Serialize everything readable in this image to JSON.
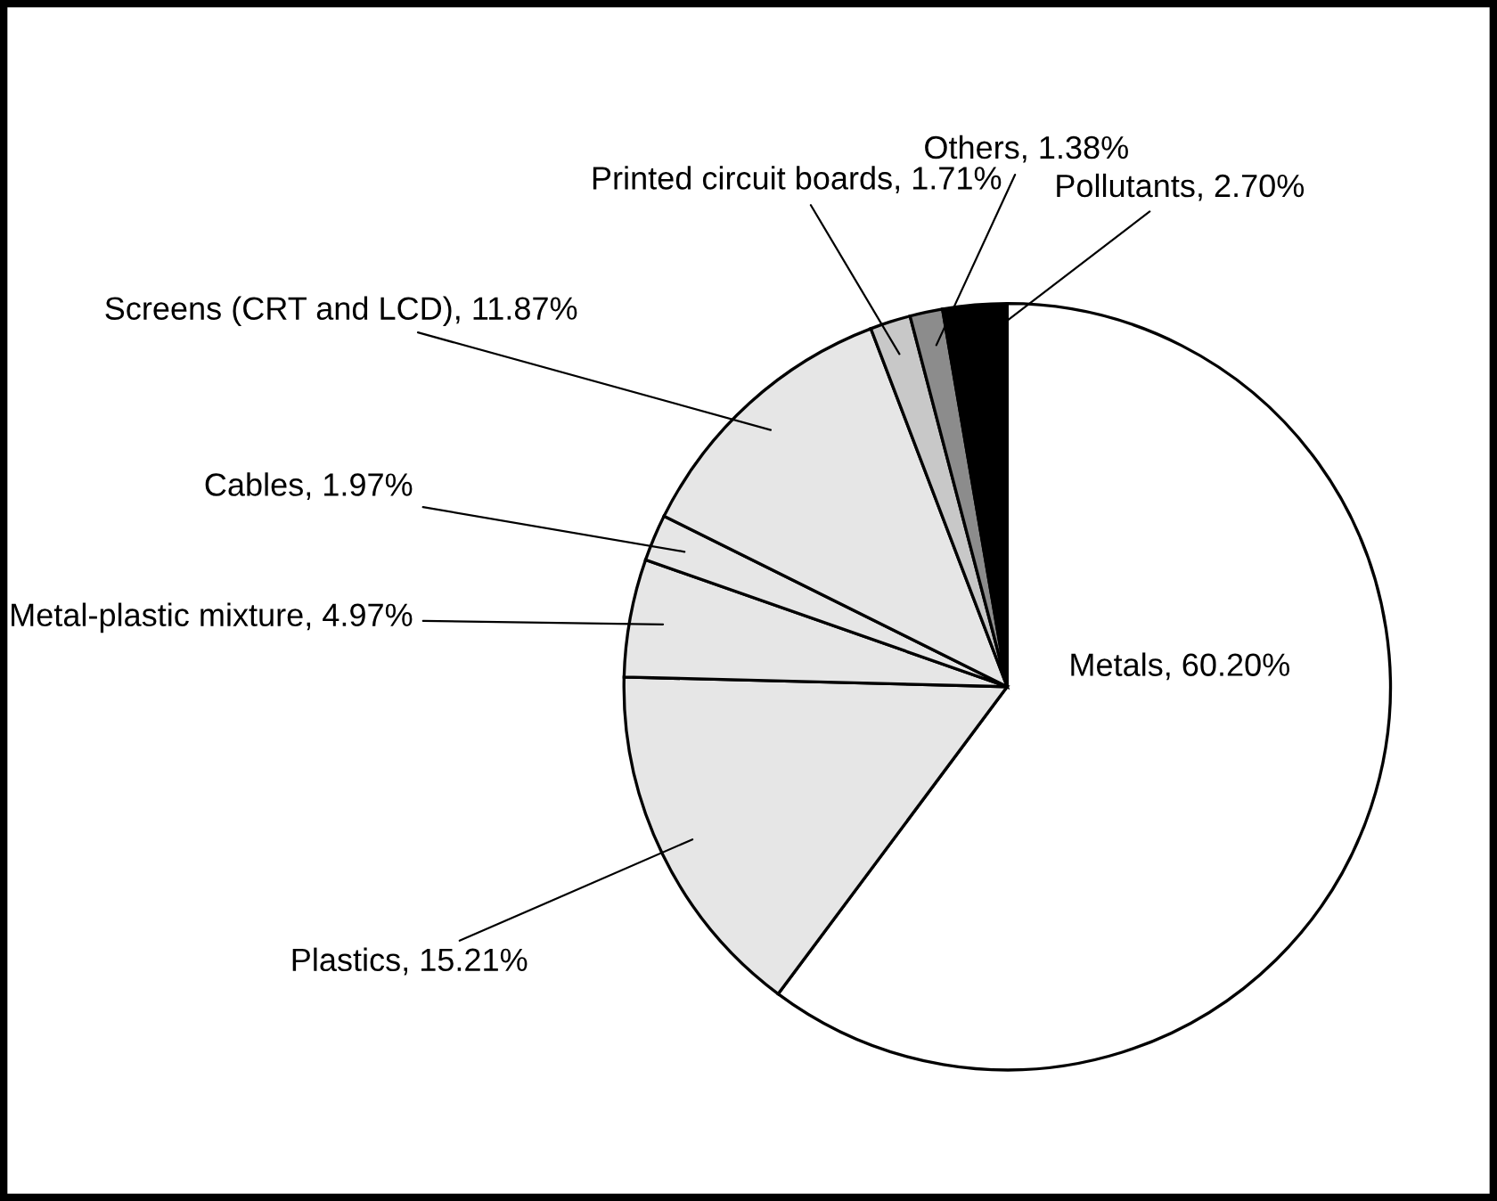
{
  "chart_data": {
    "type": "pie",
    "categories": [
      "Metals",
      "Plastics",
      "Metal-plastic mixture",
      "Cables",
      "Screens (CRT and LCD)",
      "Printed circuit boards",
      "Others",
      "Pollutants"
    ],
    "values": [
      60.2,
      15.21,
      4.97,
      1.97,
      11.87,
      1.71,
      1.38,
      2.7
    ],
    "value_labels": [
      "60.20%",
      "15.21%",
      "4.97%",
      "1.97%",
      "11.87%",
      "1.71%",
      "1.38%",
      "2.70%"
    ],
    "colors": [
      "#ffffff",
      "#e6e6e6",
      "#e6e6e6",
      "#e6e6e6",
      "#e6e6e6",
      "#c8c8c8",
      "#8c8c8c",
      "#000000"
    ],
    "legend": false
  }
}
